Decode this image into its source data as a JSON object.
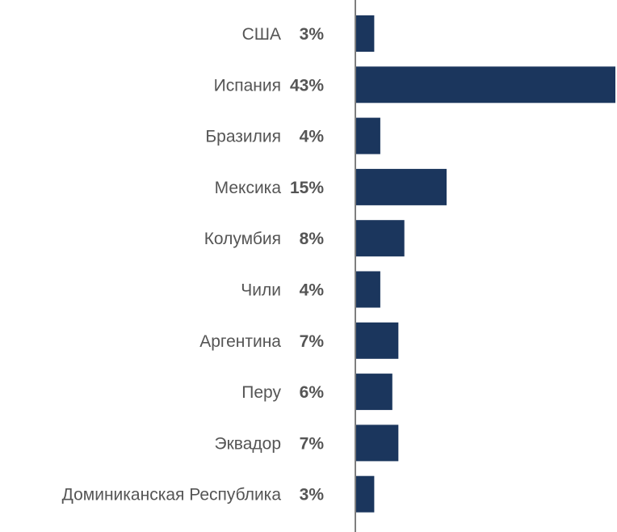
{
  "chart_data": {
    "type": "bar",
    "orientation": "horizontal",
    "categories": [
      "США",
      "Испания",
      "Бразилия",
      "Мексика",
      "Колумбия",
      "Чили",
      "Аргентина",
      "Перу",
      "Эквадор",
      "Доминиканская Республика"
    ],
    "values": [
      3,
      43,
      4,
      15,
      8,
      4,
      7,
      6,
      7,
      3
    ],
    "value_labels": [
      "3%",
      "43%",
      "4%",
      "15%",
      "8%",
      "4%",
      "7%",
      "6%",
      "7%",
      "3%"
    ],
    "unit": "%",
    "xlim": [
      0,
      43
    ],
    "bar_color": "#1b365d",
    "axis_color": "#555555",
    "label_color": "#555555",
    "grid": false,
    "legend": "none"
  }
}
